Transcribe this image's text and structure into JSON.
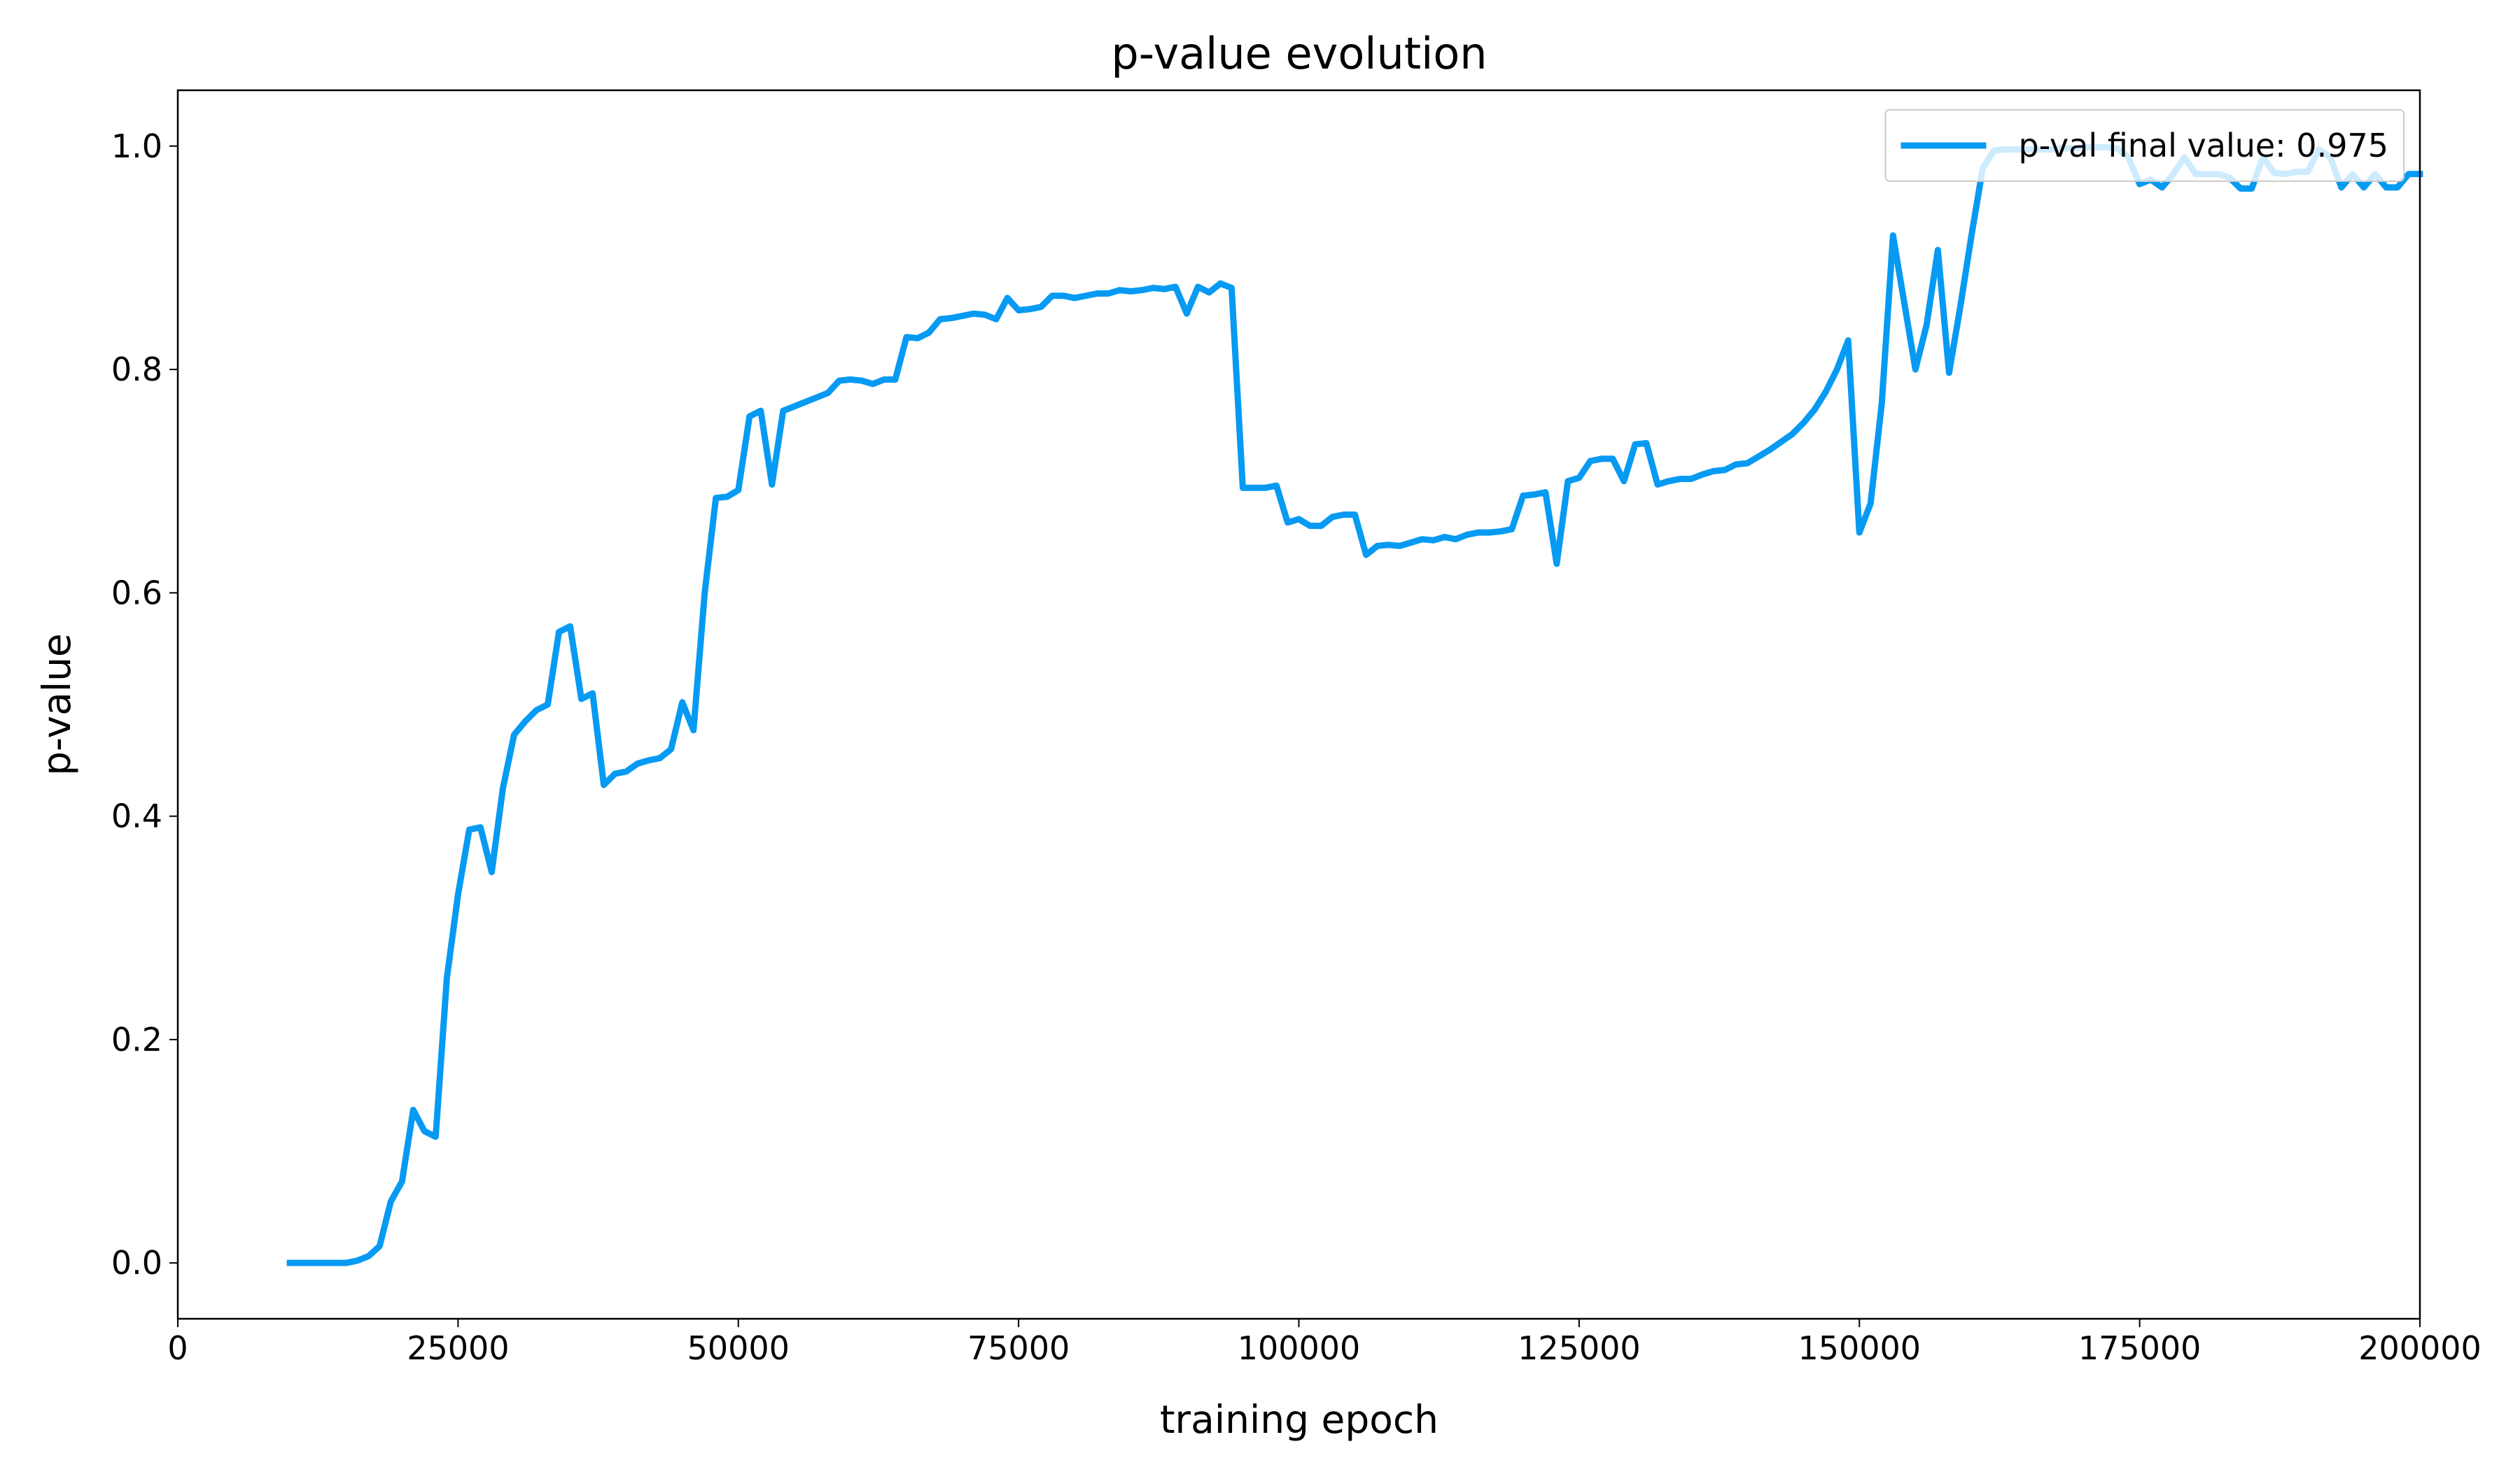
{
  "chart_data": {
    "type": "line",
    "title": "p-value evolution",
    "x_label": "training epoch",
    "y_label": "p-value",
    "xlim": [
      0,
      200000
    ],
    "ylim": [
      -0.05,
      1.05
    ],
    "xticks": [
      0,
      25000,
      50000,
      75000,
      100000,
      125000,
      150000,
      175000,
      200000
    ],
    "yticks": [
      {
        "value": 0,
        "label": "0.0"
      },
      0.2,
      0.4,
      0.6,
      0.8,
      {
        "value": 1,
        "label": "1.0"
      }
    ],
    "legend": "upper right",
    "x": [
      10000,
      11000,
      12000,
      13000,
      14000,
      15000,
      16000,
      17000,
      18000,
      19000,
      20000,
      21000,
      22000,
      23000,
      24000,
      25000,
      26000,
      27000,
      28000,
      29000,
      30000,
      31000,
      32000,
      33000,
      34000,
      35000,
      36000,
      37000,
      38000,
      39000,
      40000,
      41000,
      42000,
      43000,
      44000,
      45000,
      46000,
      47000,
      48000,
      49000,
      50000,
      51000,
      52000,
      53000,
      54000,
      55000,
      56000,
      57000,
      58000,
      59000,
      60000,
      61000,
      62000,
      63000,
      64000,
      65000,
      66000,
      67000,
      68000,
      69000,
      70000,
      71000,
      72000,
      73000,
      74000,
      75000,
      76000,
      77000,
      78000,
      79000,
      80000,
      81000,
      82000,
      83000,
      84000,
      85000,
      86000,
      87000,
      88000,
      89000,
      90000,
      91000,
      92000,
      93000,
      94000,
      95000,
      96000,
      97000,
      98000,
      99000,
      100000,
      101000,
      102000,
      103000,
      104000,
      105000,
      106000,
      107000,
      108000,
      109000,
      110000,
      111000,
      112000,
      113000,
      114000,
      115000,
      116000,
      117000,
      118000,
      119000,
      120000,
      121000,
      122000,
      123000,
      124000,
      125000,
      126000,
      127000,
      128000,
      129000,
      130000,
      131000,
      132000,
      133000,
      134000,
      135000,
      136000,
      137000,
      138000,
      139000,
      140000,
      141000,
      142000,
      143000,
      144000,
      145000,
      146000,
      147000,
      148000,
      149000,
      150000,
      151000,
      152000,
      153000,
      154000,
      155000,
      156000,
      157000,
      158000,
      159000,
      160000,
      161000,
      162000,
      163000,
      164000,
      165000,
      166000,
      167000,
      168000,
      169000,
      170000,
      171000,
      172000,
      173000,
      174000,
      175000,
      176000,
      177000,
      178000,
      179000,
      180000,
      181000,
      182000,
      183000,
      184000,
      185000,
      186000,
      187000,
      188000,
      189000,
      190000,
      191000,
      192000,
      193000,
      194000,
      195000,
      196000,
      197000,
      198000,
      199000,
      200000
    ],
    "series": [
      {
        "name": "p-val final value: 0.975",
        "color": "#069af3",
        "values": [
          0,
          0,
          0,
          0,
          0,
          0,
          0.002,
          0.006,
          0.015,
          0.055,
          0.073,
          0.137,
          0.118,
          0.113,
          0.255,
          0.33,
          0.388,
          0.39,
          0.35,
          0.425,
          0.473,
          0.485,
          0.495,
          0.5,
          0.565,
          0.57,
          0.505,
          0.51,
          0.428,
          0.438,
          0.44,
          0.447,
          0.45,
          0.452,
          0.46,
          0.502,
          0.477,
          0.6,
          0.685,
          0.686,
          0.692,
          0.758,
          0.763,
          0.697,
          0.763,
          0.767,
          0.771,
          0.775,
          0.779,
          0.79,
          0.791,
          0.79,
          0.787,
          0.791,
          0.791,
          0.829,
          0.828,
          0.833,
          0.845,
          0.846,
          0.848,
          0.85,
          0.849,
          0.845,
          0.864,
          0.853,
          0.854,
          0.856,
          0.866,
          0.866,
          0.864,
          0.866,
          0.868,
          0.868,
          0.871,
          0.87,
          0.871,
          0.873,
          0.872,
          0.874,
          0.85,
          0.874,
          0.869,
          0.877,
          0.873,
          0.694,
          0.694,
          0.694,
          0.696,
          0.663,
          0.666,
          0.66,
          0.66,
          0.668,
          0.67,
          0.67,
          0.634,
          0.642,
          0.643,
          0.642,
          0.645,
          0.648,
          0.647,
          0.65,
          0.648,
          0.652,
          0.654,
          0.654,
          0.655,
          0.657,
          0.687,
          0.688,
          0.69,
          0.626,
          0.7,
          0.703,
          0.718,
          0.72,
          0.72,
          0.7,
          0.733,
          0.734,
          0.697,
          0.7,
          0.702,
          0.702,
          0.706,
          0.709,
          0.71,
          0.715,
          0.716,
          0.722,
          0.728,
          0.735,
          0.742,
          0.752,
          0.764,
          0.78,
          0.8,
          0.826,
          0.654,
          0.68,
          0.77,
          0.92,
          0.86,
          0.8,
          0.84,
          0.907,
          0.797,
          0.856,
          0.92,
          0.98,
          0.996,
          0.997,
          0.997,
          0.997,
          0.997,
          0.997,
          0.998,
          0.998,
          0.999,
          0.999,
          0.999,
          0.998,
          0.99,
          0.966,
          0.97,
          0.963,
          0.975,
          0.99,
          0.975,
          0.975,
          0.975,
          0.972,
          0.962,
          0.962,
          0.99,
          0.976,
          0.975,
          0.977,
          0.977,
          0.997,
          0.99,
          0.963,
          0.975,
          0.963,
          0.975,
          0.963,
          0.963,
          0.975,
          0.975
        ]
      }
    ]
  }
}
